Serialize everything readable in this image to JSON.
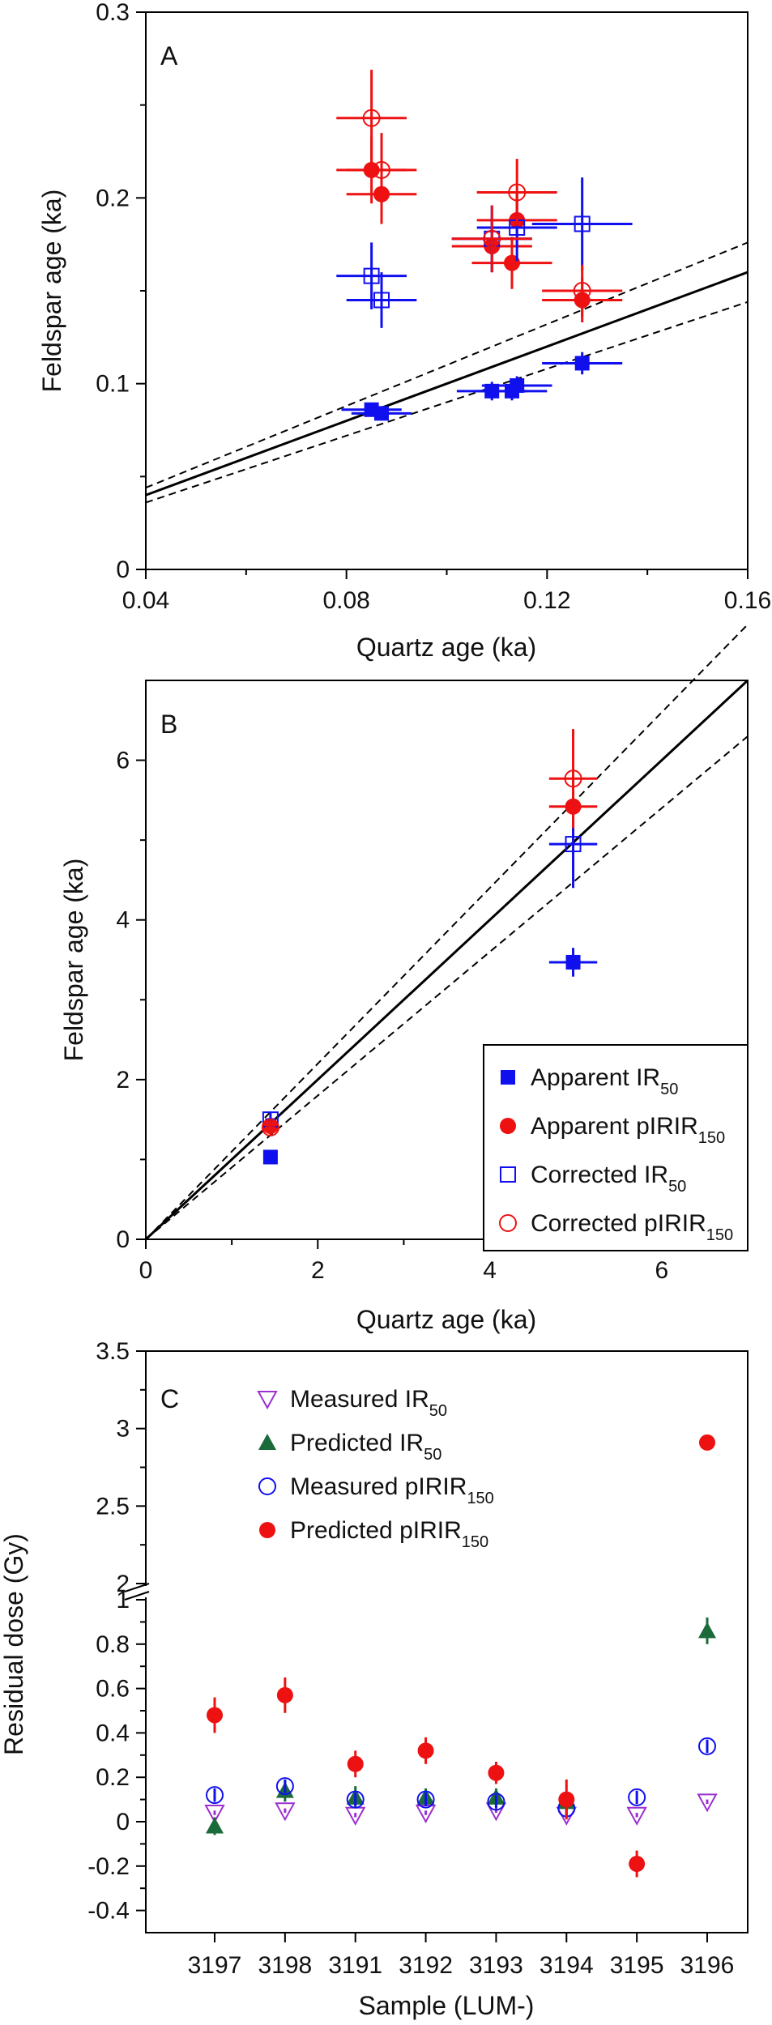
{
  "colors": {
    "blue": "#1010ee",
    "red": "#ee1111",
    "green": "#1a6a3a",
    "purple": "#9b30d0",
    "black": "#000000"
  },
  "chart_data": [
    {
      "panel": "A",
      "type": "scatter",
      "xlabel": "Quartz age (ka)",
      "ylabel": "Feldspar age (ka)",
      "xlim": [
        0.04,
        0.16
      ],
      "ylim": [
        0,
        0.3
      ],
      "xticks": [
        "0.04",
        "0.08",
        "0.12",
        "0.16"
      ],
      "yticks": [
        "0",
        "0.1",
        "0.2",
        "0.3"
      ],
      "lines": [
        {
          "style": "solid",
          "points": [
            [
              0.04,
              0.04
            ],
            [
              0.16,
              0.16
            ]
          ]
        },
        {
          "style": "dashed",
          "points": [
            [
              0.04,
              0.044
            ],
            [
              0.16,
              0.176
            ]
          ]
        },
        {
          "style": "dashed",
          "points": [
            [
              0.04,
              0.036
            ],
            [
              0.16,
              0.144
            ]
          ]
        }
      ],
      "series": [
        {
          "marker": "filled-square",
          "color": "#1010ee",
          "points": [
            {
              "x": 0.085,
              "y": 0.086,
              "xerr": 0.006,
              "yerr": 0.003
            },
            {
              "x": 0.087,
              "y": 0.084,
              "xerr": 0.006,
              "yerr": 0.003
            },
            {
              "x": 0.109,
              "y": 0.096,
              "xerr": 0.007,
              "yerr": 0.005
            },
            {
              "x": 0.113,
              "y": 0.096,
              "xerr": 0.007,
              "yerr": 0.005
            },
            {
              "x": 0.114,
              "y": 0.099,
              "xerr": 0.007,
              "yerr": 0.005
            },
            {
              "x": 0.127,
              "y": 0.111,
              "xerr": 0.008,
              "yerr": 0.006
            }
          ]
        },
        {
          "marker": "filled-circle",
          "color": "#ee1111",
          "points": [
            {
              "x": 0.085,
              "y": 0.215,
              "xerr": 0.007,
              "yerr": 0.018
            },
            {
              "x": 0.087,
              "y": 0.202,
              "xerr": 0.007,
              "yerr": 0.016
            },
            {
              "x": 0.109,
              "y": 0.174,
              "xerr": 0.008,
              "yerr": 0.014
            },
            {
              "x": 0.113,
              "y": 0.165,
              "xerr": 0.008,
              "yerr": 0.014
            },
            {
              "x": 0.114,
              "y": 0.188,
              "xerr": 0.008,
              "yerr": 0.015
            },
            {
              "x": 0.127,
              "y": 0.145,
              "xerr": 0.008,
              "yerr": 0.012
            }
          ]
        },
        {
          "marker": "open-square",
          "color": "#1010ee",
          "points": [
            {
              "x": 0.085,
              "y": 0.158,
              "xerr": 0.007,
              "yerr": 0.018
            },
            {
              "x": 0.087,
              "y": 0.145,
              "xerr": 0.007,
              "yerr": 0.015
            },
            {
              "x": 0.109,
              "y": 0.178,
              "xerr": 0.008,
              "yerr": 0.018
            },
            {
              "x": 0.114,
              "y": 0.184,
              "xerr": 0.008,
              "yerr": 0.018
            },
            {
              "x": 0.127,
              "y": 0.186,
              "xerr": 0.01,
              "yerr": 0.025
            }
          ]
        },
        {
          "marker": "open-circle",
          "color": "#ee1111",
          "points": [
            {
              "x": 0.085,
              "y": 0.243,
              "xerr": 0.007,
              "yerr": 0.026
            },
            {
              "x": 0.087,
              "y": 0.215,
              "xerr": 0.007,
              "yerr": 0.02
            },
            {
              "x": 0.109,
              "y": 0.178,
              "xerr": 0.008,
              "yerr": 0.018
            },
            {
              "x": 0.114,
              "y": 0.203,
              "xerr": 0.008,
              "yerr": 0.018
            },
            {
              "x": 0.127,
              "y": 0.15,
              "xerr": 0.008,
              "yerr": 0.014
            }
          ]
        }
      ]
    },
    {
      "panel": "B",
      "type": "scatter",
      "xlabel": "Quartz age (ka)",
      "ylabel": "Feldspar age (ka)",
      "xlim": [
        0,
        7
      ],
      "ylim": [
        0,
        7
      ],
      "xticks": [
        "0",
        "2",
        "4",
        "6"
      ],
      "yticks": [
        "0",
        "2",
        "4",
        "6"
      ],
      "lines": [
        {
          "style": "solid",
          "points": [
            [
              0,
              0
            ],
            [
              7,
              7
            ]
          ]
        },
        {
          "style": "dashed",
          "points": [
            [
              0,
              0
            ],
            [
              7,
              7.7
            ]
          ]
        },
        {
          "style": "dashed",
          "points": [
            [
              0,
              0
            ],
            [
              7,
              6.3
            ]
          ]
        }
      ],
      "legend": {
        "position": "bottom-right",
        "entries": [
          {
            "marker": "filled-square",
            "color": "#1010ee",
            "text": "Apparent IR",
            "sub": "50"
          },
          {
            "marker": "filled-circle",
            "color": "#ee1111",
            "text": "Apparent pIRIR",
            "sub": "150"
          },
          {
            "marker": "open-square",
            "color": "#1010ee",
            "text": "Corrected IR",
            "sub": "50"
          },
          {
            "marker": "open-circle",
            "color": "#ee1111",
            "text": "Corrected pIRIR",
            "sub": "150"
          }
        ]
      },
      "series": [
        {
          "marker": "filled-square",
          "color": "#1010ee",
          "points": [
            {
              "x": 1.45,
              "y": 1.03,
              "xerr": 0.05,
              "yerr": 0.05
            },
            {
              "x": 4.97,
              "y": 3.47,
              "xerr": 0.28,
              "yerr": 0.18
            }
          ]
        },
        {
          "marker": "filled-circle",
          "color": "#ee1111",
          "points": [
            {
              "x": 1.45,
              "y": 1.42,
              "xerr": 0.06,
              "yerr": 0.09
            },
            {
              "x": 4.97,
              "y": 5.42,
              "xerr": 0.28,
              "yerr": 0.4
            }
          ]
        },
        {
          "marker": "open-square",
          "color": "#1010ee",
          "points": [
            {
              "x": 1.45,
              "y": 1.5,
              "xerr": 0.06,
              "yerr": 0.1
            },
            {
              "x": 4.97,
              "y": 4.95,
              "xerr": 0.28,
              "yerr": 0.55
            }
          ]
        },
        {
          "marker": "open-circle",
          "color": "#ee1111",
          "points": [
            {
              "x": 1.45,
              "y": 1.4,
              "xerr": 0.06,
              "yerr": 0.09
            },
            {
              "x": 4.97,
              "y": 5.77,
              "xerr": 0.28,
              "yerr": 0.62
            }
          ]
        }
      ]
    },
    {
      "panel": "C",
      "type": "scatter",
      "xlabel": "Sample (LUM-)",
      "ylabel": "Residual dose (Gy)",
      "categories": [
        "3197",
        "3198",
        "3191",
        "3192",
        "3193",
        "3194",
        "3195",
        "3196"
      ],
      "ylim": [
        -0.5,
        3.5
      ],
      "axis_break": {
        "from": 1.0,
        "to": 2.0
      },
      "yticks": [
        "-0.4",
        "-0.2",
        "0",
        "0.2",
        "0.4",
        "0.6",
        "0.8",
        "1",
        "2",
        "2.5",
        "3",
        "3.5"
      ],
      "legend": {
        "position": "top",
        "entries": [
          {
            "marker": "open-triangle-down",
            "color": "#9b30d0",
            "text": "Measured IR",
            "sub": "50"
          },
          {
            "marker": "filled-triangle-up",
            "color": "#1a6a3a",
            "text": "Predicted IR",
            "sub": "50"
          },
          {
            "marker": "open-circle",
            "color": "#1010ee",
            "text": "Measured pIRIR",
            "sub": "150"
          },
          {
            "marker": "filled-circle",
            "color": "#ee1111",
            "text": "Predicted pIRIR",
            "sub": "150"
          }
        ]
      },
      "series": [
        {
          "marker": "open-triangle-down",
          "color": "#9b30d0",
          "values": [
            0.04,
            0.05,
            0.03,
            0.04,
            0.05,
            0.03,
            0.03,
            0.09
          ],
          "errors": [
            0.01,
            0.01,
            0.01,
            0.01,
            0.01,
            0.01,
            0.01,
            0.01
          ]
        },
        {
          "marker": "filled-triangle-up",
          "color": "#1a6a3a",
          "values": [
            -0.02,
            0.14,
            0.11,
            0.11,
            0.11,
            0.09,
            null,
            0.86
          ],
          "errors": [
            0.04,
            0.05,
            0.05,
            0.04,
            0.04,
            0.04,
            null,
            0.06
          ]
        },
        {
          "marker": "open-circle",
          "color": "#1010ee",
          "values": [
            0.12,
            0.16,
            0.1,
            0.1,
            0.09,
            0.06,
            0.11,
            0.34
          ],
          "errors": [
            0.03,
            0.03,
            0.03,
            0.03,
            0.03,
            0.03,
            0.03,
            0.03
          ]
        },
        {
          "marker": "filled-circle",
          "color": "#ee1111",
          "values": [
            0.48,
            0.57,
            0.26,
            0.32,
            0.22,
            0.1,
            -0.19,
            2.91
          ],
          "errors": [
            0.08,
            0.08,
            0.06,
            0.06,
            0.05,
            0.09,
            0.06,
            0.05
          ]
        }
      ]
    }
  ]
}
